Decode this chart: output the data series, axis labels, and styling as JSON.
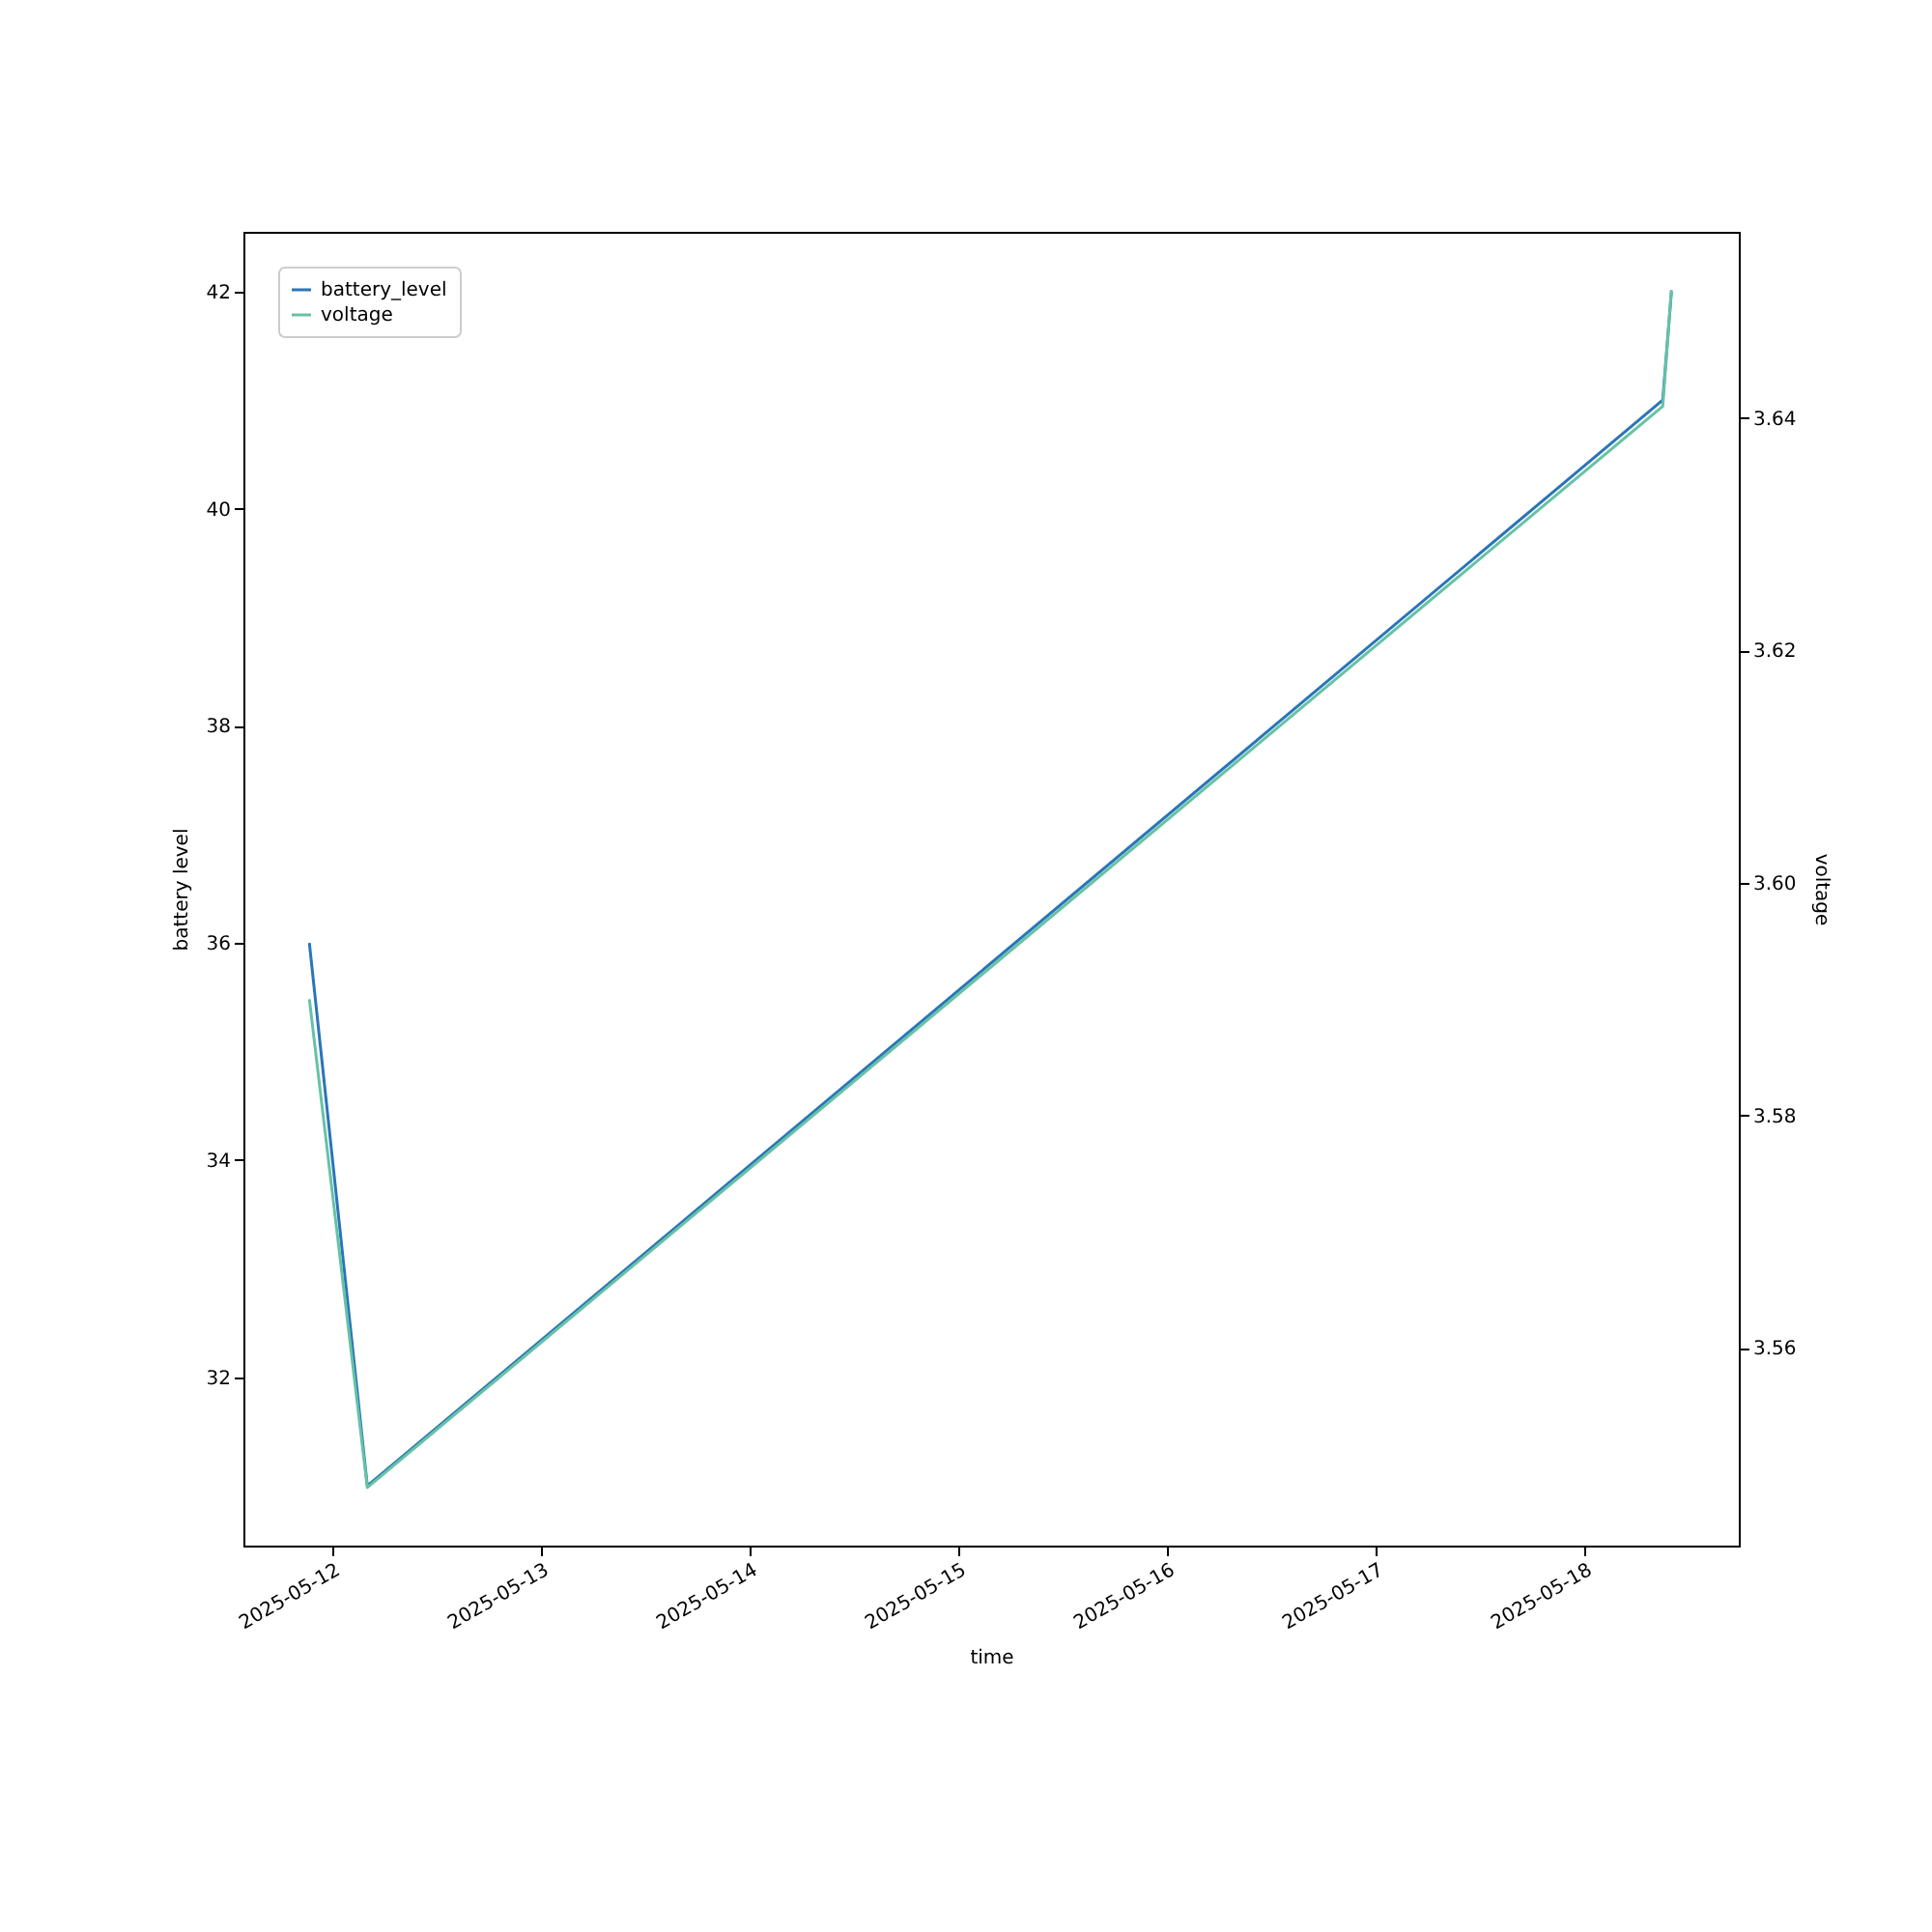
{
  "chart_data": {
    "type": "line",
    "xlabel": "time",
    "ylabel": "battery level",
    "y2label": "voltage",
    "x": [
      "2025-05-11T21:20",
      "2025-05-12T04:00",
      "2025-05-18T09:00",
      "2025-05-18T10:00"
    ],
    "series": [
      {
        "name": "battery_level",
        "color": "#2a75b8",
        "values": [
          36,
          31,
          41,
          42
        ]
      },
      {
        "name": "voltage",
        "color": "#66c2a5",
        "axis": "y2",
        "values": [
          3.59,
          3.548,
          3.641,
          3.651
        ]
      }
    ],
    "xlim": [
      "2025-05-11T13:45",
      "2025-05-18T17:45"
    ],
    "xticks": [
      "2025-05-12",
      "2025-05-13",
      "2025-05-14",
      "2025-05-15",
      "2025-05-16",
      "2025-05-17",
      "2025-05-18"
    ],
    "ylim": [
      30.45,
      42.55
    ],
    "yticks": [
      32,
      34,
      36,
      38,
      40,
      42
    ],
    "y2lim": [
      3.543,
      3.656
    ],
    "y2ticks": [
      3.56,
      3.58,
      {
        "value": 3.6,
        "label": "3.60"
      },
      3.62,
      3.64
    ],
    "legend": "top left",
    "grid": false
  }
}
